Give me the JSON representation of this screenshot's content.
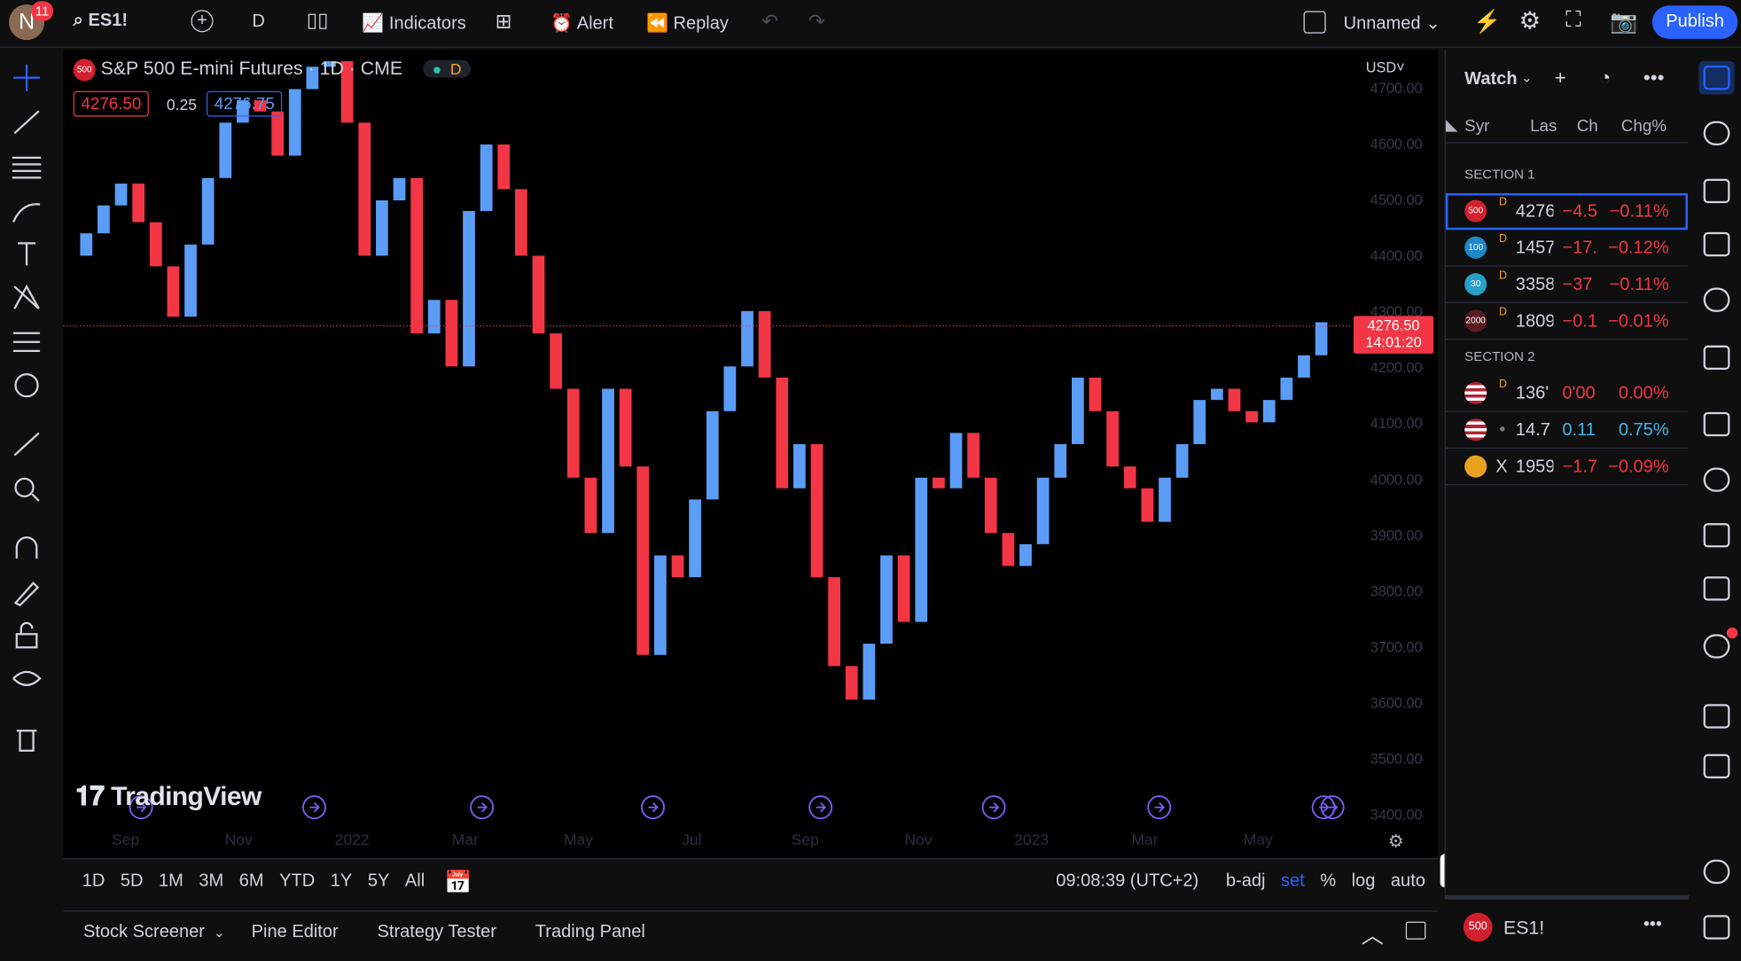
{
  "header": {
    "badge": "11",
    "symbol": "ES1!",
    "interval": "D",
    "indicators": "Indicators",
    "alert": "Alert",
    "replay": "Replay",
    "layout_name": "Unnamed",
    "publish": "Publish"
  },
  "legend": {
    "logo": "500",
    "title": "S&P 500 E-mini Futures · 1D · CME",
    "flag": "D",
    "bid": "4276.50",
    "spread": "0.25",
    "ask": "4276.75",
    "currency": "USD"
  },
  "chart_data": {
    "type": "candlestick",
    "values": [
      4402,
      4442,
      4492,
      4531,
      4462,
      4383,
      4293,
      4422,
      4541,
      4640,
      4680,
      4660,
      4581,
      4700,
      4740,
      4750,
      4640,
      4402,
      4501,
      4541,
      4263,
      4323,
      4204,
      4482,
      4601,
      4521,
      4402,
      4263,
      4164,
      4005,
      3906,
      4164,
      4025,
      3688,
      3866,
      3827,
      3966,
      4124,
      4204,
      4303,
      4184,
      3986,
      4065,
      3827,
      3668,
      3608,
      3708,
      3866,
      3747,
      4005,
      3986,
      4085,
      4005,
      3906,
      3847,
      3886,
      4005,
      4065,
      4184,
      4124,
      4025,
      3986,
      3926,
      4005,
      4065,
      4144,
      4164,
      4124,
      4104,
      4144,
      4184,
      4224,
      4283
    ],
    "ylim": [
      3330,
      4770
    ],
    "yticks": [
      {
        "value": 3400,
        "label": "3400.00"
      },
      {
        "value": 3500,
        "label": "3500.00"
      },
      {
        "value": 3600,
        "label": "3600.00"
      },
      {
        "value": 3700,
        "label": "3700.00"
      },
      {
        "value": 3800,
        "label": "3800.00"
      },
      {
        "value": 3900,
        "label": "3900.00"
      },
      {
        "value": 4000,
        "label": "4000.00"
      },
      {
        "value": 4100,
        "label": "4100.00"
      },
      {
        "value": 4200,
        "label": "4200.00"
      },
      {
        "value": 4300,
        "label": "4300.00"
      },
      {
        "value": 4400,
        "label": "4400.00"
      },
      {
        "value": 4500,
        "label": "4500.00"
      },
      {
        "value": 4600,
        "label": "4600.00"
      },
      {
        "value": 4700,
        "label": "4700.00"
      }
    ],
    "x_labels": [
      "Sep",
      "Nov",
      "2022",
      "Mar",
      "May",
      "Jul",
      "Sep",
      "Nov",
      "2023",
      "Mar",
      "May"
    ],
    "last_price": {
      "value": 4276.5,
      "label": "4276.50"
    },
    "countdown": "14:01:20",
    "up_color": "#5b9cf6",
    "down_color": "#f23645",
    "watermark": "TradingView"
  },
  "toolbar": {
    "ranges": [
      "1D",
      "5D",
      "1M",
      "3M",
      "6M",
      "YTD",
      "1Y",
      "5Y",
      "All"
    ],
    "clock": "09:08:39 (UTC+2)",
    "options": [
      "b-adj",
      "set",
      "%",
      "log",
      "auto"
    ]
  },
  "tabs": [
    "Stock Screener",
    "Pine Editor",
    "Strategy Tester",
    "Trading Panel"
  ],
  "watchlist": {
    "title": "Watch",
    "columns": [
      "Syr",
      "Las",
      "Ch",
      "Chg%"
    ],
    "sections": [
      {
        "name": "SECTION 1",
        "rows": [
          {
            "icon": "500",
            "flag": "D",
            "last": "4276",
            "change": "−4.5",
            "chg_pct": "−0.11%",
            "color": "#f23645",
            "icon_color": "#d1202e"
          },
          {
            "icon": "100",
            "flag": "D",
            "last": "1457",
            "change": "−17.",
            "chg_pct": "−0.12%",
            "color": "#f23645",
            "icon_color": "#1e88c8"
          },
          {
            "icon": "30",
            "flag": "D",
            "last": "3358",
            "change": "−37",
            "chg_pct": "−0.11%",
            "color": "#f23645",
            "icon_color": "#26a0c8"
          },
          {
            "icon": "2000",
            "flag": "D",
            "last": "1809",
            "change": "−0.1",
            "chg_pct": "−0.01%",
            "color": "#f23645",
            "icon_color": "#5a1a22"
          }
        ]
      },
      {
        "name": "SECTION 2",
        "rows": [
          {
            "icon": "",
            "flag": "D",
            "last": "136'",
            "change": "0'00",
            "chg_pct": "0.00%",
            "color": "#f23645",
            "icon_color": "us"
          },
          {
            "icon": "",
            "flag": "",
            "last": "14.7",
            "change": "0.11",
            "chg_pct": "0.75%",
            "color": "#3fb6e8",
            "icon_color": "us"
          },
          {
            "icon": "",
            "flag": "X",
            "last": "1959",
            "change": "−1.7",
            "chg_pct": "−0.09%",
            "color": "#f23645",
            "icon_color": "#e8a21e"
          }
        ]
      }
    ]
  },
  "footer": {
    "logo": "500",
    "symbol": "ES1!"
  }
}
